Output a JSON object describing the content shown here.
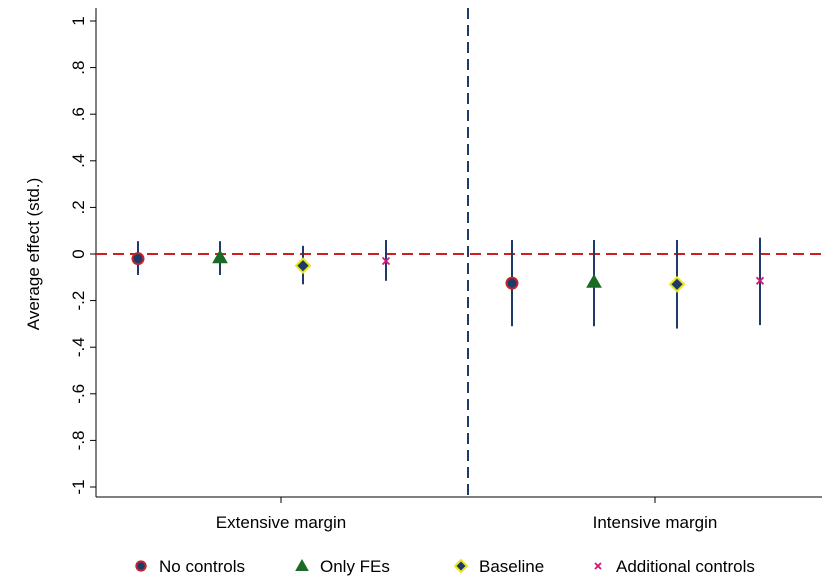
{
  "chart_data": {
    "type": "scatter",
    "ylabel": "Average effect (std.)",
    "ylim": [
      -1.1,
      1.1
    ],
    "yticks": [
      1,
      0.8,
      0.6,
      0.4,
      0.2,
      0,
      -0.2,
      -0.4,
      -0.6,
      -0.8,
      -1
    ],
    "ytick_labels": [
      "1",
      ".8",
      ".6",
      ".4",
      ".2",
      "0",
      "-.2",
      "-.4",
      "-.6",
      "-.8",
      "-1"
    ],
    "groups": [
      "Extensive margin",
      "Intensive margin"
    ],
    "grid": false,
    "reference_line_y": 0,
    "legend_position": "bottom",
    "series": [
      {
        "name": "No controls",
        "marker": "circle",
        "color": "#c0262b",
        "fill": "#1f3a68",
        "points": [
          {
            "group": "Extensive margin",
            "y": -0.02,
            "lo": -0.09,
            "hi": 0.055
          },
          {
            "group": "Intensive margin",
            "y": -0.125,
            "lo": -0.31,
            "hi": 0.06
          }
        ]
      },
      {
        "name": "Only FEs",
        "marker": "triangle",
        "color": "#1a6b25",
        "fill": "#1a6b25",
        "points": [
          {
            "group": "Extensive margin",
            "y": -0.015,
            "lo": -0.09,
            "hi": 0.055
          },
          {
            "group": "Intensive margin",
            "y": -0.12,
            "lo": -0.31,
            "hi": 0.06
          }
        ]
      },
      {
        "name": "Baseline",
        "marker": "diamond",
        "color": "#e8e81a",
        "fill": "#1f3a68",
        "points": [
          {
            "group": "Extensive margin",
            "y": -0.05,
            "lo": -0.13,
            "hi": 0.035
          },
          {
            "group": "Intensive margin",
            "y": -0.13,
            "lo": -0.32,
            "hi": 0.06
          }
        ]
      },
      {
        "name": "Additional controls",
        "marker": "x",
        "color": "#d4147a",
        "fill": "#d4147a",
        "points": [
          {
            "group": "Extensive margin",
            "y": -0.03,
            "lo": -0.115,
            "hi": 0.06
          },
          {
            "group": "Intensive margin",
            "y": -0.115,
            "lo": -0.305,
            "hi": 0.07
          }
        ]
      }
    ],
    "ci_color": "#1f3a68",
    "ref_line_color": "#cc1f1f",
    "divider_color": "#1f3a68"
  }
}
